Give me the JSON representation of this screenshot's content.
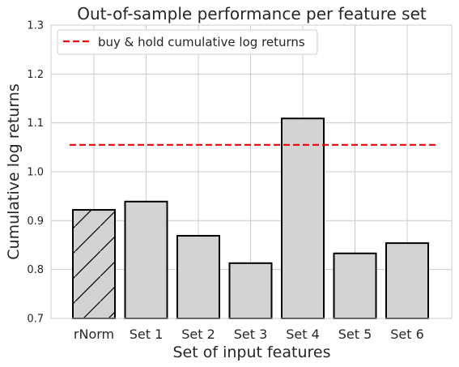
{
  "chart_data": {
    "type": "bar",
    "title": "Out-of-sample performance per feature set",
    "xlabel": "Set of input features",
    "ylabel": "Cumulative log returns",
    "categories": [
      "rNorm",
      "Set 1",
      "Set 2",
      "Set 3",
      "Set 4",
      "Set 5",
      "Set 6"
    ],
    "values": [
      0.922,
      0.939,
      0.869,
      0.813,
      1.109,
      0.833,
      0.854
    ],
    "hatched": [
      true,
      false,
      false,
      false,
      false,
      false,
      false
    ],
    "ylim": [
      0.7,
      1.3
    ],
    "yticks": [
      "0.7",
      "0.8",
      "0.9",
      "1.0",
      "1.1",
      "1.2",
      "1.3"
    ],
    "reference_line": {
      "label": "buy & hold cumulative log returns",
      "value": 1.055,
      "style": "dashed",
      "color": "#e8000b"
    },
    "bar_fill": "#d3d3d3",
    "bar_edge": "#000000",
    "grid": true,
    "legend_position": "top-left"
  }
}
